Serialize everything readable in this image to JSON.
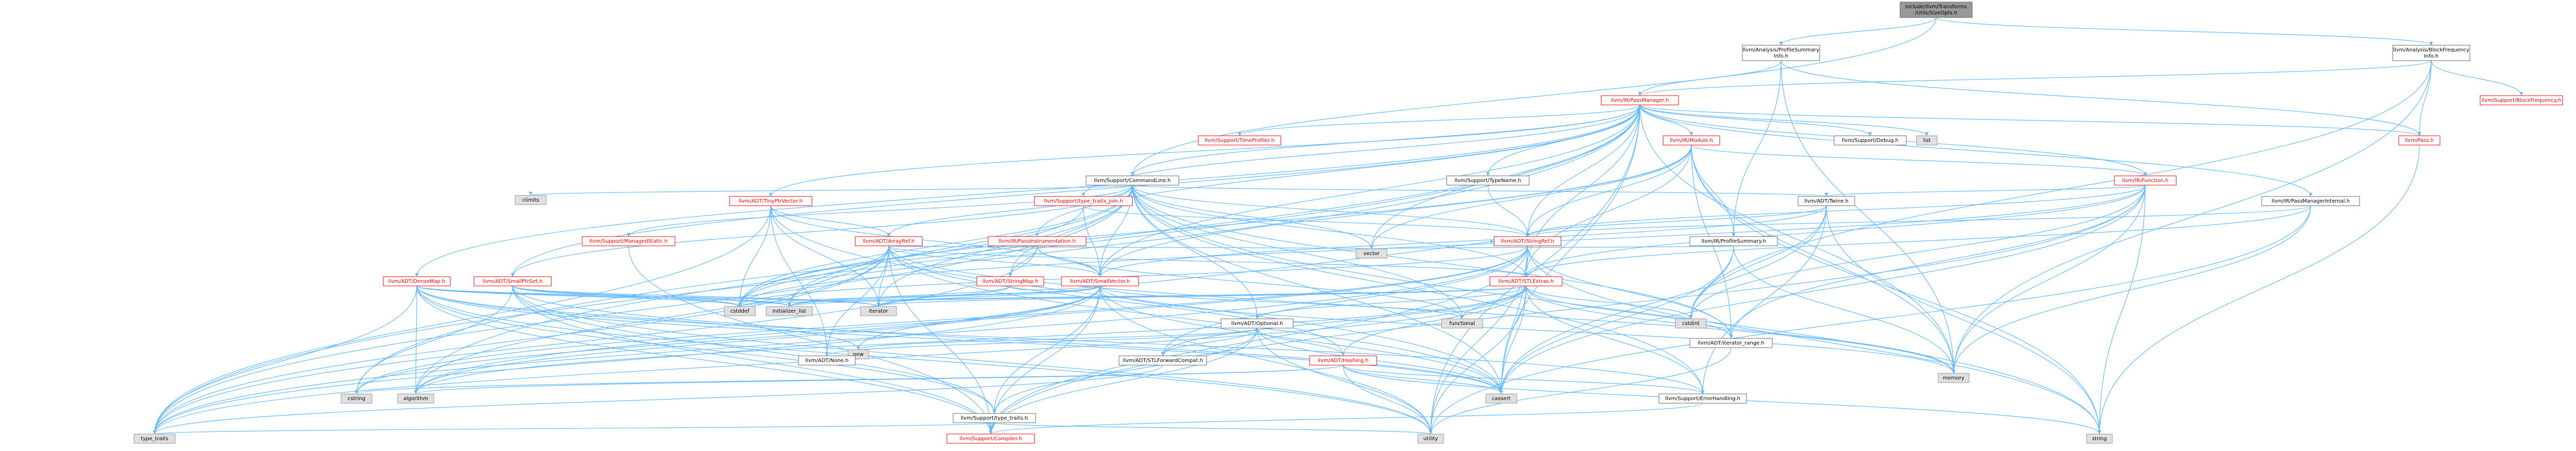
{
  "colors": {
    "edge": "#63b8ff",
    "root_fill": "#999999",
    "std_fill": "#e0e0e0",
    "missing_stroke": "#ff0000"
  },
  "nodes": [
    {
      "id": "root",
      "label": "include/llvm/Transforms\n/Utils/SizeOpts.h",
      "kind": "root"
    },
    {
      "id": "psi",
      "label": "llvm/Analysis/ProfileSummary\nInfo.h",
      "kind": "plain"
    },
    {
      "id": "bfi",
      "label": "llvm/Analysis/BlockFrequency\nInfo.h",
      "kind": "plain"
    },
    {
      "id": "blockfreq",
      "label": "llvm/Support/BlockFrequency.h",
      "kind": "red"
    },
    {
      "id": "passmgr",
      "label": "llvm/IR/PassManager.h",
      "kind": "red"
    },
    {
      "id": "timeprof",
      "label": "llvm/Support/TimeProfiler.h",
      "kind": "red"
    },
    {
      "id": "module",
      "label": "llvm/IR/Module.h",
      "kind": "red"
    },
    {
      "id": "debug",
      "label": "llvm/Support/Debug.h",
      "kind": "plain"
    },
    {
      "id": "list",
      "label": "list",
      "kind": "std"
    },
    {
      "id": "pass",
      "label": "llvm/Pass.h",
      "kind": "red"
    },
    {
      "id": "cmdline",
      "label": "llvm/Support/CommandLine.h",
      "kind": "plain"
    },
    {
      "id": "typename",
      "label": "llvm/Support/TypeName.h",
      "kind": "plain"
    },
    {
      "id": "function",
      "label": "llvm/IR/Function.h",
      "kind": "red"
    },
    {
      "id": "climits",
      "label": "climits",
      "kind": "std"
    },
    {
      "id": "tinyptr",
      "label": "llvm/ADT/TinyPtrVector.h",
      "kind": "red"
    },
    {
      "id": "typejoin",
      "label": "llvm/Support/type_traits_join.h",
      "kind": "red"
    },
    {
      "id": "twine",
      "label": "llvm/ADT/Twine.h",
      "kind": "plain"
    },
    {
      "id": "pminternal",
      "label": "llvm/IR/PassManagerInternal.h",
      "kind": "plain"
    },
    {
      "id": "managedstatic",
      "label": "llvm/Support/ManagedStatic.h",
      "kind": "red"
    },
    {
      "id": "arrayref",
      "label": "llvm/ADT/ArrayRef.h",
      "kind": "red"
    },
    {
      "id": "passinstr",
      "label": "llvm/IR/PassInstrumentation.h",
      "kind": "red"
    },
    {
      "id": "stringref",
      "label": "llvm/ADT/StringRef.h",
      "kind": "red"
    },
    {
      "id": "profsum",
      "label": "llvm/IR/ProfileSummary.h",
      "kind": "plain"
    },
    {
      "id": "vector",
      "label": "vector",
      "kind": "std"
    },
    {
      "id": "densemap",
      "label": "llvm/ADT/DenseMap.h",
      "kind": "red"
    },
    {
      "id": "smallptrset",
      "label": "llvm/ADT/SmallPtrSet.h",
      "kind": "red"
    },
    {
      "id": "stringmap",
      "label": "llvm/ADT/StringMap.h",
      "kind": "red"
    },
    {
      "id": "smallvector",
      "label": "llvm/ADT/SmallVector.h",
      "kind": "red"
    },
    {
      "id": "stlextras",
      "label": "llvm/ADT/STLExtras.h",
      "kind": "red"
    },
    {
      "id": "cstddef",
      "label": "cstddef",
      "kind": "std"
    },
    {
      "id": "initlist",
      "label": "initializer_list",
      "kind": "std"
    },
    {
      "id": "iterator",
      "label": "iterator",
      "kind": "std"
    },
    {
      "id": "optional",
      "label": "llvm/ADT/Optional.h",
      "kind": "plain"
    },
    {
      "id": "functional",
      "label": "functional",
      "kind": "std"
    },
    {
      "id": "cstdint",
      "label": "cstdint",
      "kind": "std"
    },
    {
      "id": "iterrange",
      "label": "llvm/ADT/iterator_range.h",
      "kind": "plain"
    },
    {
      "id": "new",
      "label": "new",
      "kind": "std"
    },
    {
      "id": "none",
      "label": "llvm/ADT/None.h",
      "kind": "plain"
    },
    {
      "id": "stlfwd",
      "label": "llvm/ADT/STLForwardCompat.h",
      "kind": "plain"
    },
    {
      "id": "hashing",
      "label": "llvm/ADT/Hashing.h",
      "kind": "red"
    },
    {
      "id": "memory",
      "label": "memory",
      "kind": "std"
    },
    {
      "id": "cstring",
      "label": "cstring",
      "kind": "std"
    },
    {
      "id": "algorithm",
      "label": "algorithm",
      "kind": "std"
    },
    {
      "id": "cassert",
      "label": "cassert",
      "kind": "std"
    },
    {
      "id": "errhandling",
      "label": "llvm/Support/ErrorHandling.h",
      "kind": "plain"
    },
    {
      "id": "typetraits",
      "label": "llvm/Support/type_traits.h",
      "kind": "plain"
    },
    {
      "id": "type_traits",
      "label": "type_traits",
      "kind": "std"
    },
    {
      "id": "compiler",
      "label": "llvm/Support/Compiler.h",
      "kind": "red"
    },
    {
      "id": "utility",
      "label": "utility",
      "kind": "std"
    },
    {
      "id": "string",
      "label": "string",
      "kind": "std"
    }
  ],
  "edges": [
    [
      "root",
      "psi"
    ],
    [
      "root",
      "bfi"
    ],
    [
      "root",
      "cmdline"
    ],
    [
      "psi",
      "passmgr"
    ],
    [
      "psi",
      "profsum"
    ],
    [
      "psi",
      "pass"
    ],
    [
      "psi",
      "memory"
    ],
    [
      "bfi",
      "blockfreq"
    ],
    [
      "bfi",
      "passmgr"
    ],
    [
      "bfi",
      "pass"
    ],
    [
      "bfi",
      "memory"
    ],
    [
      "bfi",
      "cstdint"
    ],
    [
      "passmgr",
      "timeprof"
    ],
    [
      "passmgr",
      "module"
    ],
    [
      "passmgr",
      "debug"
    ],
    [
      "passmgr",
      "list"
    ],
    [
      "passmgr",
      "pass"
    ],
    [
      "passmgr",
      "cmdline"
    ],
    [
      "passmgr",
      "typename"
    ],
    [
      "passmgr",
      "function"
    ],
    [
      "passmgr",
      "tinyptr"
    ],
    [
      "passmgr",
      "typejoin"
    ],
    [
      "passmgr",
      "pminternal"
    ],
    [
      "passmgr",
      "passinstr"
    ],
    [
      "passmgr",
      "stringref"
    ],
    [
      "passmgr",
      "densemap"
    ],
    [
      "passmgr",
      "smallptrset"
    ],
    [
      "passmgr",
      "smallvector"
    ],
    [
      "passmgr",
      "stlextras"
    ],
    [
      "passmgr",
      "vector"
    ],
    [
      "passmgr",
      "memory"
    ],
    [
      "passmgr",
      "cassert"
    ],
    [
      "passmgr",
      "type_traits"
    ],
    [
      "passmgr",
      "utility"
    ],
    [
      "passmgr",
      "cstring"
    ],
    [
      "passmgr",
      "algorithm"
    ],
    [
      "module",
      "function"
    ],
    [
      "module",
      "profsum"
    ],
    [
      "module",
      "stringref"
    ],
    [
      "module",
      "smallvector"
    ],
    [
      "module",
      "stlextras"
    ],
    [
      "module",
      "iterrange"
    ],
    [
      "module",
      "cstddef"
    ],
    [
      "module",
      "memory"
    ],
    [
      "module",
      "string"
    ],
    [
      "module",
      "vector"
    ],
    [
      "pass",
      "string"
    ],
    [
      "cmdline",
      "climits"
    ],
    [
      "cmdline",
      "managedstatic"
    ],
    [
      "cmdline",
      "arrayref"
    ],
    [
      "cmdline",
      "twine"
    ],
    [
      "cmdline",
      "stringref"
    ],
    [
      "cmdline",
      "stringmap"
    ],
    [
      "cmdline",
      "smallptrset"
    ],
    [
      "cmdline",
      "smallvector"
    ],
    [
      "cmdline",
      "stlextras"
    ],
    [
      "cmdline",
      "optional"
    ],
    [
      "cmdline",
      "functional"
    ],
    [
      "cmdline",
      "cassert"
    ],
    [
      "cmdline",
      "initlist"
    ],
    [
      "cmdline",
      "iterator"
    ],
    [
      "cmdline",
      "cstddef"
    ],
    [
      "cmdline",
      "vector"
    ],
    [
      "cmdline",
      "string"
    ],
    [
      "cmdline",
      "type_traits"
    ],
    [
      "cmdline",
      "errhandling"
    ],
    [
      "cmdline",
      "iterrange"
    ],
    [
      "typename",
      "stringref"
    ],
    [
      "function",
      "twine"
    ],
    [
      "function",
      "stringref"
    ],
    [
      "function",
      "stlextras"
    ],
    [
      "function",
      "iterrange"
    ],
    [
      "function",
      "compiler"
    ],
    [
      "function",
      "cassert"
    ],
    [
      "function",
      "cstddef"
    ],
    [
      "function",
      "cstdint"
    ],
    [
      "function",
      "memory"
    ],
    [
      "function",
      "string"
    ],
    [
      "tinyptr",
      "arrayref"
    ],
    [
      "tinyptr",
      "smallvector"
    ],
    [
      "tinyptr",
      "cassert"
    ],
    [
      "tinyptr",
      "cstddef"
    ],
    [
      "tinyptr",
      "iterator"
    ],
    [
      "tinyptr",
      "type_traits"
    ],
    [
      "tinyptr",
      "none"
    ],
    [
      "typejoin",
      "stringref"
    ],
    [
      "typejoin",
      "smallvector"
    ],
    [
      "typejoin",
      "cstddef"
    ],
    [
      "twine",
      "smallvector"
    ],
    [
      "twine",
      "stringref"
    ],
    [
      "twine",
      "errhandling"
    ],
    [
      "twine",
      "cassert"
    ],
    [
      "twine",
      "cstdint"
    ],
    [
      "twine",
      "string"
    ],
    [
      "pminternal",
      "stringref"
    ],
    [
      "pminternal",
      "stlextras"
    ],
    [
      "pminternal",
      "memory"
    ],
    [
      "pminternal",
      "utility"
    ],
    [
      "managedstatic",
      "compiler"
    ],
    [
      "arrayref",
      "hashing"
    ],
    [
      "arrayref",
      "none"
    ],
    [
      "arrayref",
      "smallvector"
    ],
    [
      "arrayref",
      "stlextras"
    ],
    [
      "arrayref",
      "compiler"
    ],
    [
      "arrayref",
      "algorithm"
    ],
    [
      "arrayref",
      "array"
    ],
    [
      "arrayref",
      "cassert"
    ],
    [
      "arrayref",
      "cstddef"
    ],
    [
      "arrayref",
      "initlist"
    ],
    [
      "arrayref",
      "iterator"
    ],
    [
      "arrayref",
      "memory"
    ],
    [
      "arrayref",
      "type_traits"
    ],
    [
      "arrayref",
      "vector"
    ],
    [
      "passinstr",
      "stringmap"
    ],
    [
      "passinstr",
      "smallvector"
    ],
    [
      "passinstr",
      "functional"
    ],
    [
      "passinstr",
      "type_traits"
    ],
    [
      "stringref",
      "stlfwd"
    ],
    [
      "stringref",
      "iterrange"
    ],
    [
      "stringref",
      "compiler"
    ],
    [
      "stringref",
      "algorithm"
    ],
    [
      "stringref",
      "cassert"
    ],
    [
      "stringref",
      "cstddef"
    ],
    [
      "stringref",
      "cstring"
    ],
    [
      "stringref",
      "limits"
    ],
    [
      "stringref",
      "string"
    ],
    [
      "stringref",
      "type_traits"
    ],
    [
      "stringref",
      "utility"
    ],
    [
      "profsum",
      "cstdint"
    ],
    [
      "profsum",
      "memory"
    ],
    [
      "profsum",
      "vector"
    ],
    [
      "profsum",
      "cassert"
    ],
    [
      "densemap",
      "compiler"
    ],
    [
      "densemap",
      "algorithm"
    ],
    [
      "densemap",
      "cassert"
    ],
    [
      "densemap",
      "cstddef"
    ],
    [
      "densemap",
      "initlist"
    ],
    [
      "densemap",
      "iterator"
    ],
    [
      "densemap",
      "new"
    ],
    [
      "densemap",
      "type_traits"
    ],
    [
      "densemap",
      "utility"
    ],
    [
      "densemap",
      "errhandling"
    ],
    [
      "densemap",
      "typetraits"
    ],
    [
      "smallptrset",
      "compiler"
    ],
    [
      "smallptrset",
      "typetraits"
    ],
    [
      "smallptrset",
      "cassert"
    ],
    [
      "smallptrset",
      "cstddef"
    ],
    [
      "smallptrset",
      "cstring"
    ],
    [
      "smallptrset",
      "cstdlib"
    ],
    [
      "smallptrset",
      "initlist"
    ],
    [
      "smallptrset",
      "iterator"
    ],
    [
      "smallptrset",
      "utility"
    ],
    [
      "stringmap",
      "stringref"
    ],
    [
      "stringmap",
      "iterator"
    ],
    [
      "stringmap",
      "initlist"
    ],
    [
      "smallvector",
      "compiler"
    ],
    [
      "smallvector",
      "typetraits"
    ],
    [
      "smallvector",
      "algorithm"
    ],
    [
      "smallvector",
      "cassert"
    ],
    [
      "smallvector",
      "cstddef"
    ],
    [
      "smallvector",
      "cstdlib"
    ],
    [
      "smallvector",
      "cstring"
    ],
    [
      "smallvector",
      "functional"
    ],
    [
      "smallvector",
      "initlist"
    ],
    [
      "smallvector",
      "iterator"
    ],
    [
      "smallvector",
      "limits"
    ],
    [
      "smallvector",
      "memory"
    ],
    [
      "smallvector",
      "new"
    ],
    [
      "smallvector",
      "type_traits"
    ],
    [
      "smallvector",
      "utility"
    ],
    [
      "stlextras",
      "hashing"
    ],
    [
      "stlextras",
      "optional"
    ],
    [
      "stlextras",
      "stlfwd"
    ],
    [
      "stlextras",
      "iterrange"
    ],
    [
      "stlextras",
      "errhandling"
    ],
    [
      "stlextras",
      "algorithm"
    ],
    [
      "stlextras",
      "cassert"
    ],
    [
      "stlextras",
      "cstddef"
    ],
    [
      "stlextras",
      "cstdint"
    ],
    [
      "stlextras",
      "cstdlib"
    ],
    [
      "stlextras",
      "functional"
    ],
    [
      "stlextras",
      "initlist"
    ],
    [
      "stlextras",
      "iterator"
    ],
    [
      "stlextras",
      "limits"
    ],
    [
      "stlextras",
      "memory"
    ],
    [
      "stlextras",
      "tuple"
    ],
    [
      "stlextras",
      "type_traits"
    ],
    [
      "stlextras",
      "utility"
    ],
    [
      "optional",
      "none"
    ],
    [
      "optional",
      "stlfwd"
    ],
    [
      "optional",
      "hashing"
    ],
    [
      "optional",
      "compiler"
    ],
    [
      "optional",
      "typetraits"
    ],
    [
      "optional",
      "cassert"
    ],
    [
      "optional",
      "new"
    ],
    [
      "optional",
      "utility"
    ],
    [
      "iterrange",
      "utility"
    ],
    [
      "hashing",
      "errhandling"
    ],
    [
      "hashing",
      "algorithm"
    ],
    [
      "hashing",
      "cassert"
    ],
    [
      "hashing",
      "cstring"
    ],
    [
      "hashing",
      "string"
    ],
    [
      "hashing",
      "tuple"
    ],
    [
      "hashing",
      "utility"
    ],
    [
      "errhandling",
      "compiler"
    ],
    [
      "typetraits",
      "compiler"
    ],
    [
      "typetraits",
      "type_traits"
    ],
    [
      "typetraits",
      "utility"
    ],
    [
      "stlfwd",
      "type_traits"
    ]
  ]
}
